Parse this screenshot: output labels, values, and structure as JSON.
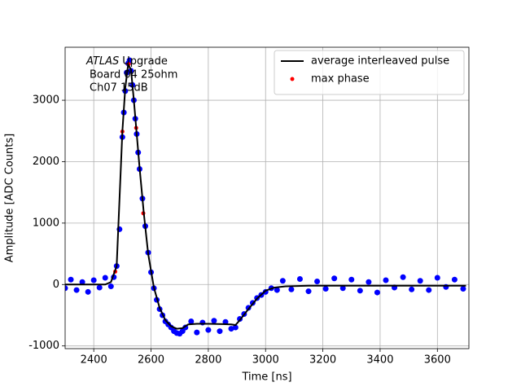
{
  "chart_data": {
    "type": "scatter",
    "xlabel": "Time [ns]",
    "ylabel": "Amplitude [ADC Counts]",
    "xlim": [
      2300,
      3710
    ],
    "ylim": [
      -1044,
      3863
    ],
    "xticks": [
      2400,
      2600,
      2800,
      3000,
      3200,
      3400,
      3600
    ],
    "yticks": [
      -1000,
      0,
      1000,
      2000,
      3000
    ],
    "grid": true,
    "legend": "upper right",
    "annotation": {
      "experiment": "ATLAS",
      "label": "Upgrade",
      "lines": [
        "Board 04 25ohm",
        "Ch07 15dB"
      ]
    },
    "series": [
      {
        "style": "marker",
        "color": "#0000ff",
        "x": [
          2300,
          2320,
          2340,
          2360,
          2380,
          2400,
          2420,
          2440,
          2460,
          2470,
          2480,
          2490,
          2500,
          2505,
          2510,
          2515,
          2520,
          2525,
          2530,
          2535,
          2540,
          2545,
          2550,
          2555,
          2560,
          2570,
          2580,
          2590,
          2600,
          2610,
          2620,
          2630,
          2640,
          2650,
          2660,
          2670,
          2680,
          2690,
          2700,
          2710,
          2720,
          2740,
          2760,
          2780,
          2800,
          2820,
          2840,
          2860,
          2880,
          2895,
          2910,
          2925,
          2940,
          2955,
          2970,
          2985,
          3000,
          3020,
          3040,
          3060,
          3090,
          3120,
          3150,
          3180,
          3210,
          3240,
          3270,
          3300,
          3330,
          3360,
          3390,
          3420,
          3450,
          3480,
          3510,
          3540,
          3570,
          3600,
          3630,
          3660,
          3690
        ],
        "values": [
          -60,
          80,
          -90,
          40,
          -120,
          70,
          -50,
          110,
          -30,
          120,
          300,
          900,
          2400,
          2800,
          3150,
          3450,
          3600,
          3650,
          3480,
          3250,
          3000,
          2700,
          2450,
          2150,
          1880,
          1400,
          950,
          520,
          200,
          -60,
          -250,
          -400,
          -500,
          -600,
          -650,
          -700,
          -760,
          -790,
          -800,
          -760,
          -700,
          -600,
          -780,
          -620,
          -740,
          -590,
          -760,
          -610,
          -720,
          -700,
          -560,
          -480,
          -380,
          -300,
          -220,
          -170,
          -120,
          -60,
          -90,
          60,
          -80,
          90,
          -110,
          50,
          -70,
          100,
          -60,
          80,
          -100,
          40,
          -130,
          70,
          -50,
          120,
          -80,
          60,
          -90,
          110,
          -40,
          80,
          -70
        ]
      },
      {
        "style": "line",
        "name": "average interleaved pulse",
        "color": "#000000",
        "x": [
          2300,
          2440,
          2460,
          2480,
          2500,
          2510,
          2520,
          2530,
          2540,
          2550,
          2560,
          2575,
          2590,
          2610,
          2630,
          2650,
          2670,
          2690,
          2710,
          2730,
          2760,
          2800,
          2850,
          2880,
          2895,
          2910,
          2940,
          2970,
          3000,
          3030,
          3070,
          3150,
          3700
        ],
        "values": [
          0,
          0,
          40,
          300,
          2500,
          3200,
          3580,
          3500,
          3000,
          2450,
          1900,
          1150,
          500,
          -50,
          -380,
          -580,
          -680,
          -720,
          -710,
          -650,
          -640,
          -640,
          -645,
          -650,
          -660,
          -580,
          -400,
          -230,
          -100,
          -50,
          -30,
          -20,
          -20
        ]
      },
      {
        "style": "marker",
        "name": "max phase",
        "color": "#ff0000",
        "x": [
          2475,
          2500,
          2522,
          2548,
          2573
        ],
        "values": [
          210,
          2490,
          3590,
          2550,
          1160
        ]
      }
    ]
  }
}
